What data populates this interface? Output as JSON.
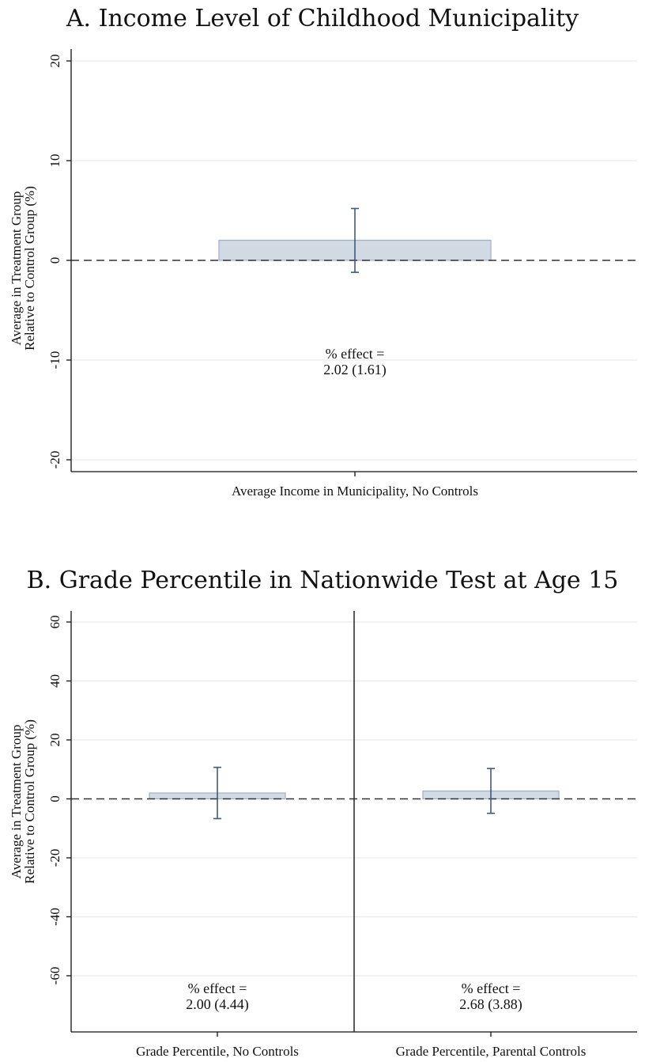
{
  "chart_data": [
    {
      "type": "bar",
      "title": "A. Income Level of Childhood Municipality",
      "ylabel_line1": "Average in Treatment Group",
      "ylabel_line2": "Relative to Control Group (%)",
      "ylim": [
        -20,
        20
      ],
      "yticks": [
        -20,
        -10,
        0,
        10,
        20
      ],
      "ytick_labels": [
        "-20",
        "-10",
        "0",
        "10",
        "20"
      ],
      "grid": true,
      "reference_line": 0,
      "categories": [
        "Average Income in Municipality, No Controls"
      ],
      "values": [
        2.02
      ],
      "ci_low": [
        -1.2
      ],
      "ci_high": [
        5.2
      ],
      "annotations": [
        {
          "line1": "% effect =",
          "line2": "2.02 (1.61)",
          "y": -10
        }
      ]
    },
    {
      "type": "bar",
      "title": "B. Grade Percentile in Nationwide Test at Age 15",
      "ylabel_line1": "Average in Treatment Group",
      "ylabel_line2": "Relative to Control Group (%)",
      "ylim": [
        -60,
        60
      ],
      "yticks": [
        -60,
        -40,
        -20,
        0,
        20,
        40,
        60
      ],
      "ytick_labels": [
        "-60",
        "-40",
        "-20",
        "0",
        "20",
        "40",
        "60"
      ],
      "grid": true,
      "reference_line": 0,
      "categories": [
        "Grade Percentile, No Controls",
        "Grade Percentile, Parental Controls"
      ],
      "values": [
        2.0,
        2.68
      ],
      "ci_low": [
        -6.7,
        -4.9
      ],
      "ci_high": [
        10.7,
        10.3
      ],
      "annotations": [
        {
          "line1": "% effect =",
          "line2": "2.00 (4.44)",
          "y": -58
        },
        {
          "line1": "% effect =",
          "line2": "2.68 (3.88)",
          "y": -58
        }
      ]
    }
  ],
  "colors": {
    "bar_fill": "#d1d9e3",
    "bar_stroke": "#9fb0c4",
    "errorbar": "#3f5a7a",
    "grid": "#e6ebef",
    "axis": "#111111",
    "reference_line": "#333333",
    "separator": "#222222"
  }
}
